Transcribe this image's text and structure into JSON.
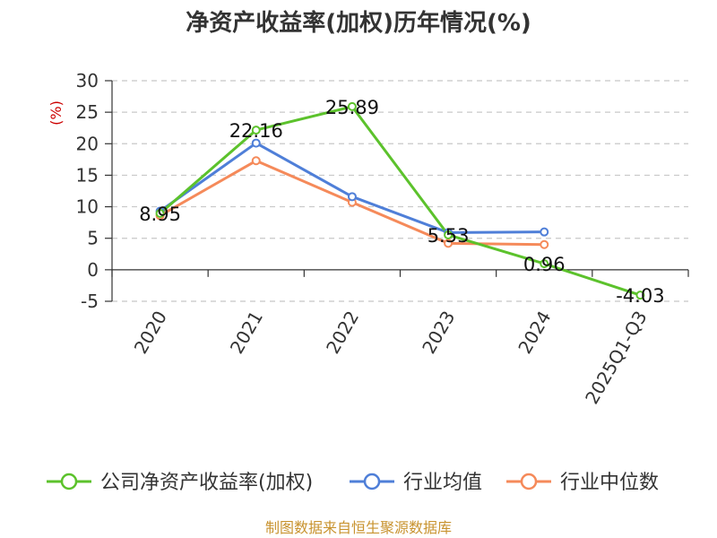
{
  "chart_data": {
    "type": "line",
    "title": "净资产收益率(加权)历年情况(%)",
    "ylabel": "(%)",
    "categories": [
      "2020",
      "2021",
      "2022",
      "2023",
      "2024",
      "2025Q1-Q3"
    ],
    "ylim": [
      -5,
      30
    ],
    "yticks": [
      30,
      25,
      20,
      15,
      10,
      5,
      0,
      -5
    ],
    "grid": true,
    "legend_position": "bottom",
    "series": [
      {
        "name": "公司净资产收益率(加权)",
        "color": "#5cc22c",
        "values": [
          8.95,
          22.16,
          25.89,
          5.53,
          0.96,
          -4.03
        ],
        "labels": [
          "8.95",
          "22.16",
          "25.89",
          "5.53",
          "0.96",
          "-4.03"
        ]
      },
      {
        "name": "行业均值",
        "color": "#4f7fd8",
        "values": [
          9.3,
          20.1,
          11.6,
          5.9,
          6.0,
          null
        ]
      },
      {
        "name": "行业中位数",
        "color": "#f58a5a",
        "values": [
          8.6,
          17.3,
          10.7,
          4.2,
          4.0,
          null
        ]
      }
    ]
  },
  "source": "制图数据来自恒生聚源数据库"
}
